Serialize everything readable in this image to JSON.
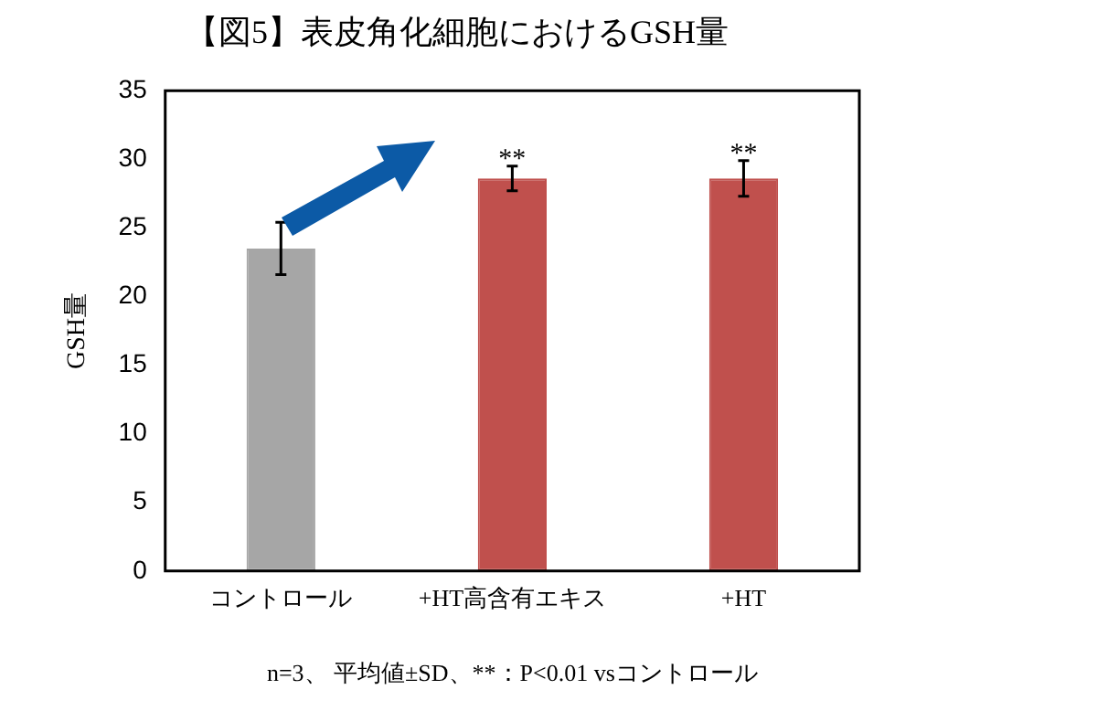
{
  "chart_data": {
    "type": "bar",
    "title": "【図5】表皮角化細胞におけるGSH量",
    "ylabel": "GSH量",
    "categories": [
      "コントロール",
      "+HT高含有エキス",
      "+HT"
    ],
    "values": [
      23.5,
      28.6,
      28.6
    ],
    "errors": [
      1.9,
      0.9,
      1.3
    ],
    "colors": [
      "#a6a6a6",
      "#c0504d",
      "#c0504d"
    ],
    "ylim": [
      0,
      35
    ],
    "yticks": [
      0,
      5,
      10,
      15,
      20,
      25,
      30,
      35
    ],
    "grid": false,
    "legend": false,
    "annotations": [
      "**",
      "**",
      "n=3、 平均値±SD、**：P<0.01 vsコントロール"
    ]
  }
}
